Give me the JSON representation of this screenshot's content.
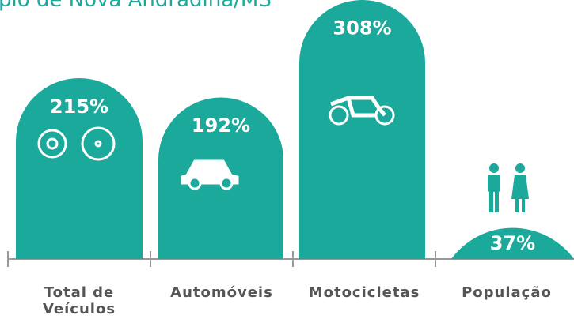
{
  "chart_data": {
    "type": "bar",
    "title": "pio de Nova Andradina/MS",
    "categories": [
      "Total de Veículos",
      "Automóveis",
      "Motocicletas",
      "População"
    ],
    "values": [
      215,
      192,
      308,
      37
    ],
    "value_labels": [
      "215%",
      "192%",
      "308%",
      "37%"
    ],
    "color": "#1aa99a"
  }
}
